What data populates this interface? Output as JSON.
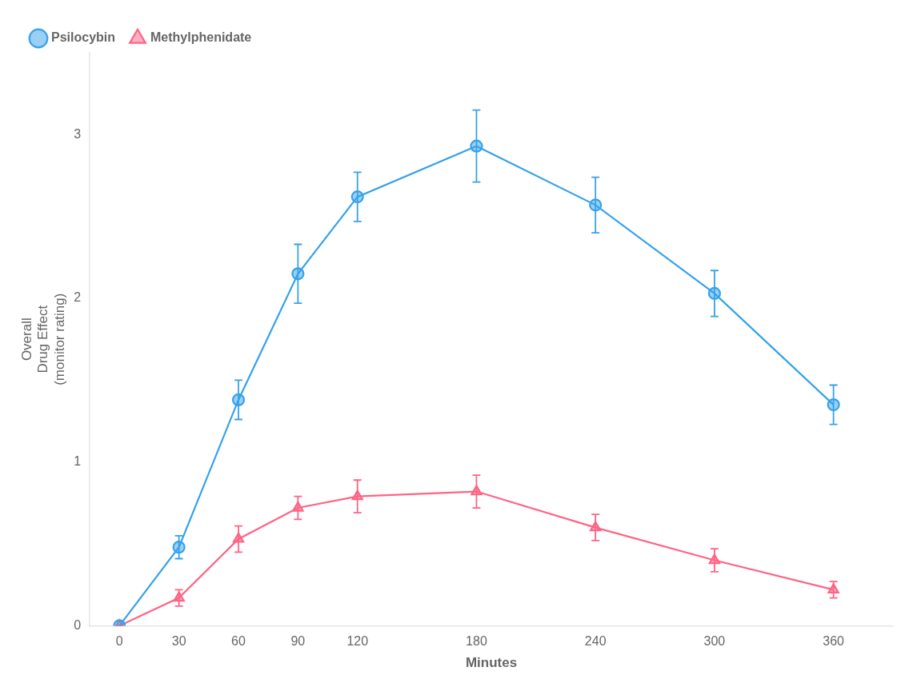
{
  "chart_data": {
    "type": "line",
    "x": [
      0,
      30,
      60,
      90,
      120,
      180,
      240,
      300,
      360
    ],
    "series": [
      {
        "name": "Psilocybin",
        "marker": "circle",
        "values": [
          0.0,
          0.48,
          1.38,
          2.15,
          2.62,
          2.93,
          2.57,
          2.03,
          1.35
        ],
        "errors": [
          0.0,
          0.07,
          0.12,
          0.18,
          0.15,
          0.22,
          0.17,
          0.14,
          0.12
        ]
      },
      {
        "name": "Methylphenidate",
        "marker": "triangle",
        "values": [
          0.0,
          0.17,
          0.53,
          0.72,
          0.79,
          0.82,
          0.6,
          0.4,
          0.22
        ],
        "errors": [
          0.0,
          0.05,
          0.08,
          0.07,
          0.1,
          0.1,
          0.08,
          0.07,
          0.05
        ]
      }
    ],
    "xlabel": "Minutes",
    "ylabel": "Overall\nDrug Effect\n(monitor rating)",
    "xlim": [
      -15,
      390
    ],
    "xticks": [
      0,
      30,
      60,
      90,
      120,
      180,
      240,
      300,
      360
    ],
    "ylim": [
      0,
      3.5
    ],
    "yticks": [
      0,
      1,
      2,
      3
    ],
    "grid": false,
    "legend": "upper left"
  }
}
